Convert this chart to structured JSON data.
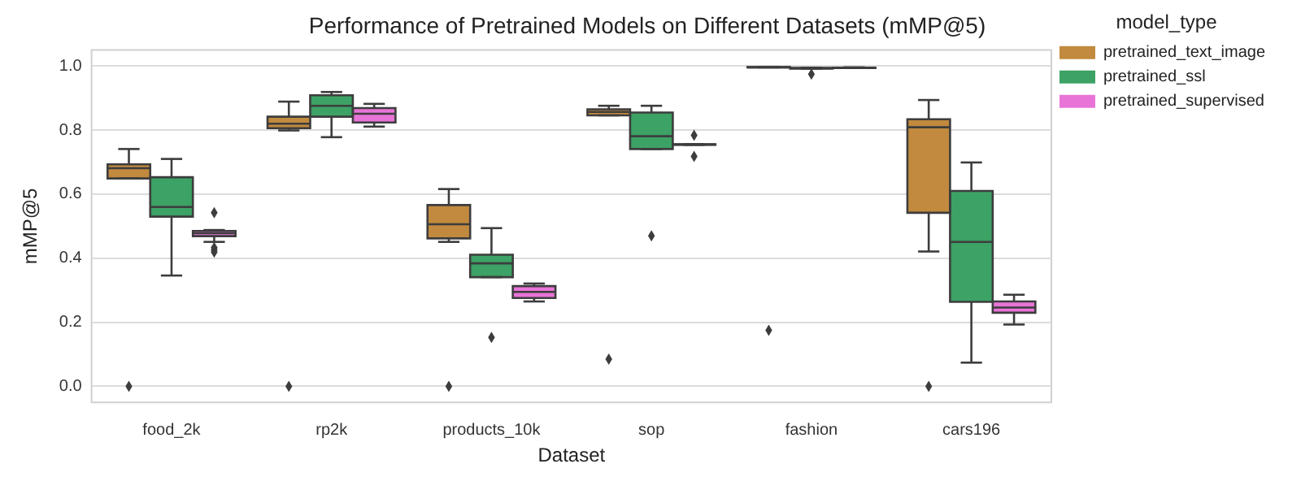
{
  "chart_data": {
    "type": "box",
    "title": "Performance of Pretrained Models on Different Datasets (mMP@5)",
    "xlabel": "Dataset",
    "ylabel": "mMP@5",
    "legend_title": "model_type",
    "legend": "right",
    "grid": "y",
    "marker": "diamond",
    "categories": [
      "food_2k",
      "rp2k",
      "products_10k",
      "sop",
      "fashion",
      "cars196"
    ],
    "ylim": [
      -0.05,
      1.05
    ],
    "yticks": [
      {
        "value": 0,
        "label": "0.0"
      },
      0.2,
      0.4,
      0.6,
      0.8,
      {
        "value": 1,
        "label": "1.0"
      }
    ],
    "series": [
      {
        "name": "pretrained_text_image",
        "color": "#c28a3e",
        "boxes": [
          {
            "low": 0.649,
            "q1": 0.649,
            "median": 0.681,
            "q3": 0.693,
            "high": 0.741,
            "outliers": [
              0
            ]
          },
          {
            "low": 0.799,
            "q1": 0.806,
            "median": 0.82,
            "q3": 0.842,
            "high": 0.889,
            "outliers": [
              0
            ]
          },
          {
            "low": 0.451,
            "q1": 0.462,
            "median": 0.506,
            "q3": 0.566,
            "high": 0.616,
            "outliers": [
              0
            ]
          },
          {
            "low": 0.846,
            "q1": 0.846,
            "median": 0.857,
            "q3": 0.865,
            "high": 0.876,
            "outliers": [
              0.085
            ]
          },
          {
            "low": 0.996,
            "q1": 0.996,
            "median": 0.996,
            "q3": 0.997,
            "high": 0.997,
            "outliers": [
              0.175
            ]
          },
          {
            "low": 0.421,
            "q1": 0.542,
            "median": 0.809,
            "q3": 0.834,
            "high": 0.894,
            "outliers": [
              0
            ]
          }
        ]
      },
      {
        "name": "pretrained_ssl",
        "color": "#3ca265",
        "boxes": [
          {
            "low": 0.346,
            "q1": 0.53,
            "median": 0.56,
            "q3": 0.653,
            "high": 0.71
          },
          {
            "low": 0.778,
            "q1": 0.842,
            "median": 0.876,
            "q3": 0.909,
            "high": 0.919
          },
          {
            "low": 0.341,
            "q1": 0.341,
            "median": 0.384,
            "q3": 0.411,
            "high": 0.494,
            "outliers": [
              0.153
            ]
          },
          {
            "low": 0.741,
            "q1": 0.741,
            "median": 0.781,
            "q3": 0.855,
            "high": 0.876,
            "outliers": [
              0.47
            ]
          },
          {
            "low": 0.992,
            "q1": 0.992,
            "median": 0.993,
            "q3": 0.994,
            "high": 0.995,
            "outliers": [
              0.975
            ]
          },
          {
            "low": 0.074,
            "q1": 0.264,
            "median": 0.451,
            "q3": 0.61,
            "high": 0.699
          }
        ]
      },
      {
        "name": "pretrained_supervised",
        "color": "#e874d8",
        "boxes": [
          {
            "low": 0.451,
            "q1": 0.469,
            "median": 0.478,
            "q3": 0.485,
            "high": 0.488,
            "outliers": [
              0.542,
              0.433,
              0.426,
              0.419
            ]
          },
          {
            "low": 0.811,
            "q1": 0.824,
            "median": 0.851,
            "q3": 0.869,
            "high": 0.882
          },
          {
            "low": 0.265,
            "q1": 0.276,
            "median": 0.295,
            "q3": 0.313,
            "high": 0.321
          },
          {
            "low": 0.754,
            "q1": 0.754,
            "median": 0.755,
            "q3": 0.756,
            "high": 0.756,
            "outliers": [
              0.784,
              0.718
            ]
          },
          {
            "low": 0.994,
            "q1": 0.994,
            "median": 0.995,
            "q3": 0.995,
            "high": 0.996
          },
          {
            "low": 0.193,
            "q1": 0.23,
            "median": 0.246,
            "q3": 0.265,
            "high": 0.286
          }
        ]
      }
    ]
  }
}
